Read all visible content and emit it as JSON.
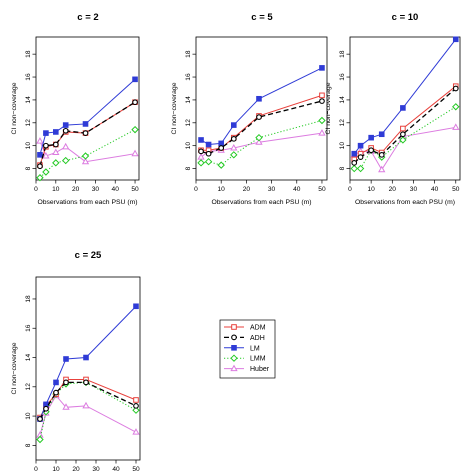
{
  "chart_data": [
    {
      "type": "line",
      "title": "c = 2",
      "xlabel": "Observations from each PSU (m)",
      "ylabel": "CI non−coverage",
      "x": [
        2,
        5,
        10,
        15,
        25,
        50
      ],
      "xticks": [
        "0",
        "10",
        "20",
        "30",
        "40",
        "50"
      ],
      "yticks": [
        "8",
        "10",
        "12",
        "14",
        "16",
        "18"
      ],
      "xlim": [
        0,
        52
      ],
      "ylim": [
        7,
        19.5
      ],
      "series": [
        {
          "name": "ADM",
          "values": [
            8.3,
            9.9,
            10.1,
            11.2,
            11.1,
            13.8
          ]
        },
        {
          "name": "ADH",
          "values": [
            8.2,
            10.0,
            10.1,
            11.3,
            11.1,
            13.8
          ]
        },
        {
          "name": "LM",
          "values": [
            9.2,
            11.1,
            11.2,
            11.8,
            11.9,
            15.8
          ]
        },
        {
          "name": "LMM",
          "values": [
            7.2,
            7.7,
            8.5,
            8.7,
            9.1,
            11.4
          ]
        },
        {
          "name": "Huber",
          "values": [
            10.4,
            9.1,
            9.4,
            9.9,
            8.6,
            9.3
          ]
        }
      ]
    },
    {
      "type": "line",
      "title": "c = 5",
      "xlabel": "Observations from each PSU (m)",
      "ylabel": "CI non−coverage",
      "x": [
        2,
        5,
        10,
        15,
        25,
        50
      ],
      "xticks": [
        "0",
        "10",
        "20",
        "30",
        "40",
        "50"
      ],
      "yticks": [
        "8",
        "10",
        "12",
        "14",
        "16",
        "18"
      ],
      "xlim": [
        0,
        52
      ],
      "ylim": [
        7,
        19.5
      ],
      "series": [
        {
          "name": "ADM",
          "values": [
            9.6,
            9.6,
            9.8,
            10.7,
            12.6,
            14.4
          ]
        },
        {
          "name": "ADH",
          "values": [
            9.5,
            9.3,
            9.8,
            10.6,
            12.5,
            13.9
          ]
        },
        {
          "name": "LM",
          "values": [
            10.5,
            10.1,
            10.2,
            11.8,
            14.1,
            16.8
          ]
        },
        {
          "name": "LMM",
          "values": [
            8.5,
            8.6,
            8.3,
            9.2,
            10.7,
            12.2
          ]
        },
        {
          "name": "Huber",
          "values": [
            9.0,
            9.5,
            9.6,
            9.8,
            10.3,
            11.1
          ]
        }
      ]
    },
    {
      "type": "line",
      "title": "c = 10",
      "xlabel": "Observations from each PSU (m)",
      "ylabel": "CI non−coverage",
      "x": [
        2,
        5,
        10,
        15,
        25,
        50
      ],
      "xticks": [
        "0",
        "10",
        "20",
        "30",
        "40",
        "50"
      ],
      "yticks": [
        "8",
        "10",
        "12",
        "14",
        "16",
        "18"
      ],
      "xlim": [
        0,
        52
      ],
      "ylim": [
        7,
        19.5
      ],
      "series": [
        {
          "name": "ADM",
          "values": [
            8.8,
            9.3,
            9.8,
            9.4,
            11.5,
            15.2
          ]
        },
        {
          "name": "ADH",
          "values": [
            8.5,
            9.0,
            9.6,
            9.2,
            11.0,
            15.0
          ]
        },
        {
          "name": "LM",
          "values": [
            9.3,
            10.0,
            10.7,
            11.0,
            13.3,
            19.3
          ]
        },
        {
          "name": "LMM",
          "values": [
            8.0,
            8.0,
            9.6,
            9.0,
            10.5,
            13.4
          ]
        },
        {
          "name": "Huber",
          "values": [
            9.2,
            9.5,
            9.5,
            7.9,
            10.8,
            11.6
          ]
        }
      ]
    },
    {
      "type": "line",
      "title": "c = 25",
      "xlabel": "Observations from each PSU (m)",
      "ylabel": "CI non−coverage",
      "x": [
        2,
        5,
        10,
        15,
        25,
        50
      ],
      "xticks": [
        "0",
        "10",
        "20",
        "30",
        "40",
        "50"
      ],
      "yticks": [
        "8",
        "10",
        "12",
        "14",
        "16",
        "18"
      ],
      "xlim": [
        0,
        52
      ],
      "ylim": [
        7,
        19.5
      ],
      "series": [
        {
          "name": "ADM",
          "values": [
            9.9,
            10.7,
            11.5,
            12.5,
            12.5,
            11.1
          ]
        },
        {
          "name": "ADH",
          "values": [
            9.8,
            10.5,
            11.6,
            12.3,
            12.3,
            10.7
          ]
        },
        {
          "name": "LM",
          "values": [
            9.8,
            10.8,
            12.3,
            13.9,
            14.0,
            17.5
          ]
        },
        {
          "name": "LMM",
          "values": [
            8.4,
            10.3,
            11.5,
            12.2,
            12.3,
            10.4
          ]
        },
        {
          "name": "Huber",
          "values": [
            8.7,
            10.2,
            11.4,
            10.6,
            10.7,
            8.9
          ]
        }
      ]
    }
  ],
  "legend": {
    "items": [
      {
        "label": "ADM",
        "color": "#e8413c",
        "dash": "",
        "marker": "square-open",
        "width": 1
      },
      {
        "label": "ADH",
        "color": "#000000",
        "dash": "5,3",
        "marker": "circle-open",
        "width": 1.3
      },
      {
        "label": "LM",
        "color": "#2f3bd6",
        "dash": "",
        "marker": "square-filled",
        "width": 1
      },
      {
        "label": "LMM",
        "color": "#22c922",
        "dash": "1.2,2",
        "marker": "diamond-open",
        "width": 1
      },
      {
        "label": "Huber",
        "color": "#dc7ce0",
        "dash": "",
        "marker": "triangle-open",
        "width": 1
      }
    ]
  }
}
